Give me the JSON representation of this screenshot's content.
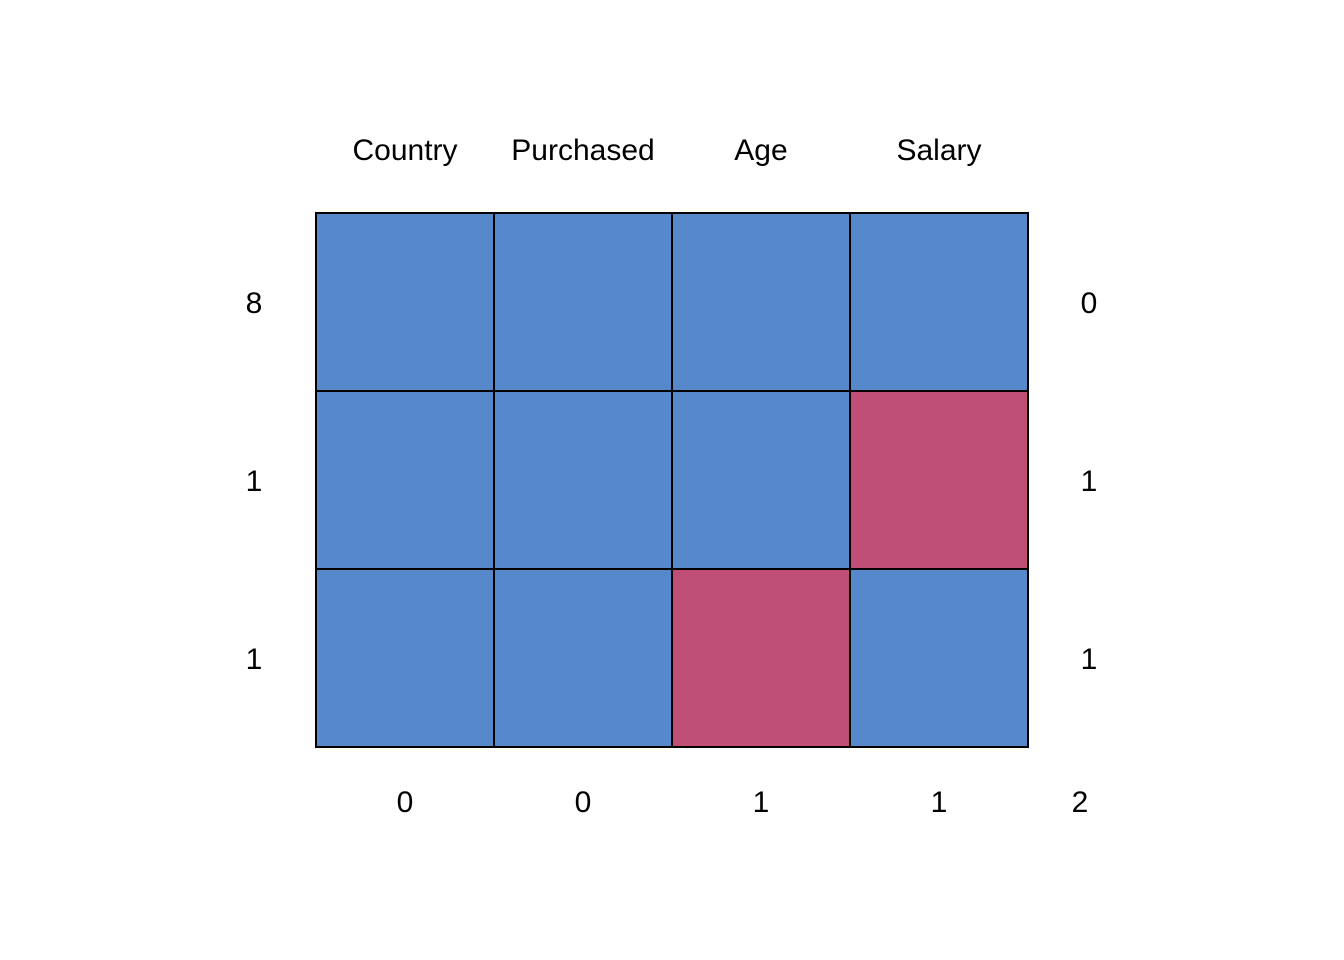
{
  "chart_data": {
    "type": "heatmap",
    "title": "",
    "columns": [
      "Country",
      "Purchased",
      "Age",
      "Salary"
    ],
    "row_frequencies": [
      "8",
      "1",
      "1"
    ],
    "row_missing_counts": [
      "0",
      "1",
      "1"
    ],
    "column_missing_counts": [
      "0",
      "0",
      "1",
      "1"
    ],
    "total_missing": "2",
    "pattern": [
      [
        0,
        0,
        0,
        0
      ],
      [
        0,
        0,
        0,
        1
      ],
      [
        0,
        0,
        1,
        0
      ]
    ],
    "colors": {
      "observed": "#5589CB",
      "missing": "#C04F78"
    }
  }
}
